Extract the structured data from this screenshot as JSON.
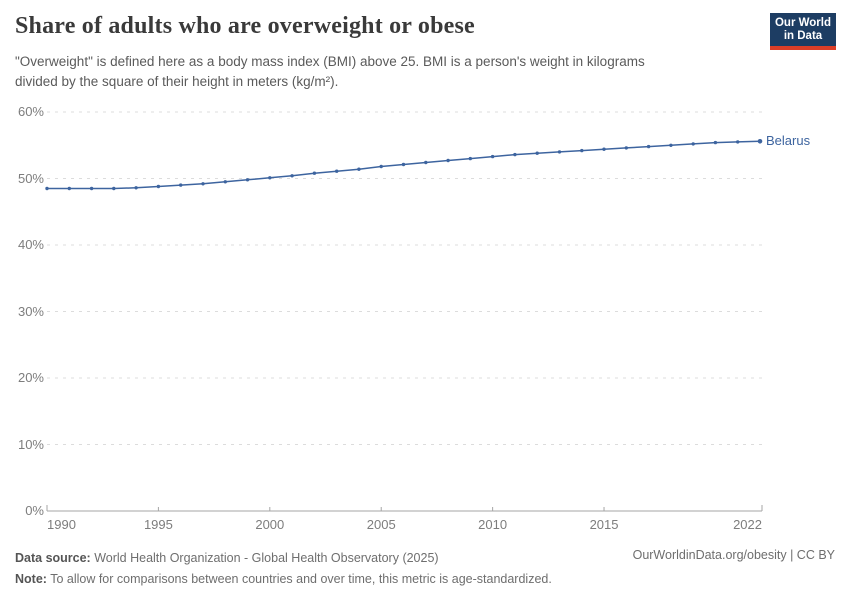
{
  "header": {
    "title": "Share of adults who are overweight or obese",
    "subtitle_lines": [
      "\"Overweight\" is defined here as a body mass index (BMI) above 25. BMI is a person's weight in kilograms",
      "divided by the square of their height in meters (kg/m²)."
    ],
    "logo": {
      "line1": "Our World",
      "line2": "in Data",
      "bg_color": "#1d3d63",
      "accent_color": "#dc3e27"
    }
  },
  "chart_data": {
    "type": "line",
    "title": "Share of adults who are overweight or obese",
    "x": [
      1990,
      1991,
      1992,
      1993,
      1994,
      1995,
      1996,
      1997,
      1998,
      1999,
      2000,
      2001,
      2002,
      2003,
      2004,
      2005,
      2006,
      2007,
      2008,
      2009,
      2010,
      2011,
      2012,
      2013,
      2014,
      2015,
      2016,
      2017,
      2018,
      2019,
      2020,
      2021,
      2022
    ],
    "series": [
      {
        "name": "Belarus",
        "color": "#3d649f",
        "values": [
          48.5,
          48.5,
          48.5,
          48.5,
          48.6,
          48.8,
          49.0,
          49.2,
          49.5,
          49.8,
          50.1,
          50.4,
          50.8,
          51.1,
          51.4,
          51.8,
          52.1,
          52.4,
          52.7,
          53.0,
          53.3,
          53.6,
          53.8,
          54.0,
          54.2,
          54.4,
          54.6,
          54.8,
          55.0,
          55.2,
          55.4,
          55.5,
          55.6
        ]
      }
    ],
    "xlabel": "",
    "ylabel": "",
    "xlim": [
      1990,
      2022
    ],
    "ylim": [
      0,
      60
    ],
    "yticks": [
      0,
      10,
      20,
      30,
      40,
      50,
      60
    ],
    "ytick_suffix": "%",
    "xticks": [
      1990,
      1995,
      2000,
      2005,
      2010,
      2015,
      2022
    ],
    "grid": "horizontal-dashed",
    "legend_position": "line-end-label"
  },
  "colors": {
    "grid": "#dcdcdc",
    "axis": "#a5a5a5",
    "tick_label": "#7d7d7d"
  },
  "footer": {
    "datasource_label": "Data source:",
    "datasource_value": " World Health Organization - Global Health Observatory (2025)",
    "note_label": "Note:",
    "note_value": " To allow for comparisons between countries and over time, this metric is age-standardized.",
    "link": "OurWorldinData.org/obesity | CC BY"
  }
}
